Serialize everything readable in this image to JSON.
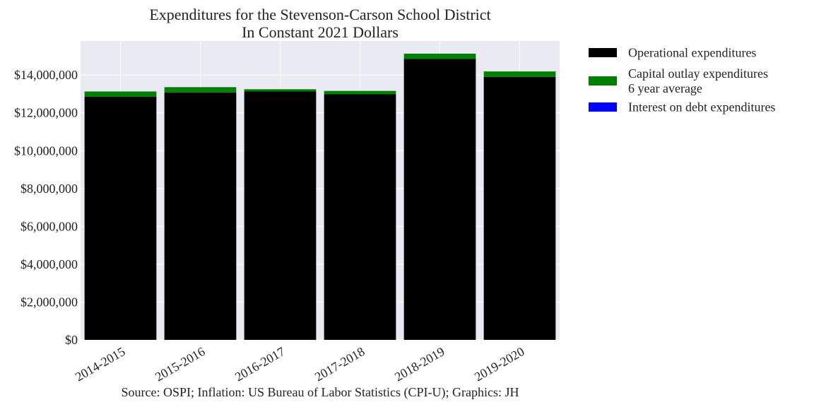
{
  "chart_data": {
    "type": "bar",
    "stacked": true,
    "title": [
      "Expenditures for the Stevenson-Carson School District",
      "In Constant 2021 Dollars"
    ],
    "xlabel": "",
    "ylabel": "",
    "categories": [
      "2014-2015",
      "2015-2016",
      "2016-2017",
      "2017-2018",
      "2018-2019",
      "2019-2020"
    ],
    "series": [
      {
        "name": "Operational expenditures",
        "color": "#000000",
        "values": [
          12850000,
          13080000,
          13130000,
          12980000,
          14850000,
          13900000
        ]
      },
      {
        "name": "Capital outlay expenditures\n6 year average",
        "color": "#008000",
        "values": [
          280000,
          280000,
          120000,
          180000,
          280000,
          290000
        ]
      },
      {
        "name": "Interest on debt expenditures",
        "color": "#0000ff",
        "values": [
          0,
          0,
          0,
          0,
          0,
          0
        ]
      }
    ],
    "ylim": [
      0,
      15800000
    ],
    "yticks": [
      0,
      2000000,
      4000000,
      6000000,
      8000000,
      10000000,
      12000000,
      14000000
    ],
    "ytick_labels": [
      "$0",
      "$2,000,000",
      "$4,000,000",
      "$6,000,000",
      "$8,000,000",
      "$10,000,000",
      "$12,000,000",
      "$14,000,000"
    ],
    "grid": true,
    "legend_position": "outside-right",
    "source": "Source: OSPI; Inflation: US Bureau of Labor Statistics (CPI-U); Graphics: JH",
    "colors": {
      "plot_background": "#eaeaf2",
      "grid": "#ffffff"
    }
  }
}
